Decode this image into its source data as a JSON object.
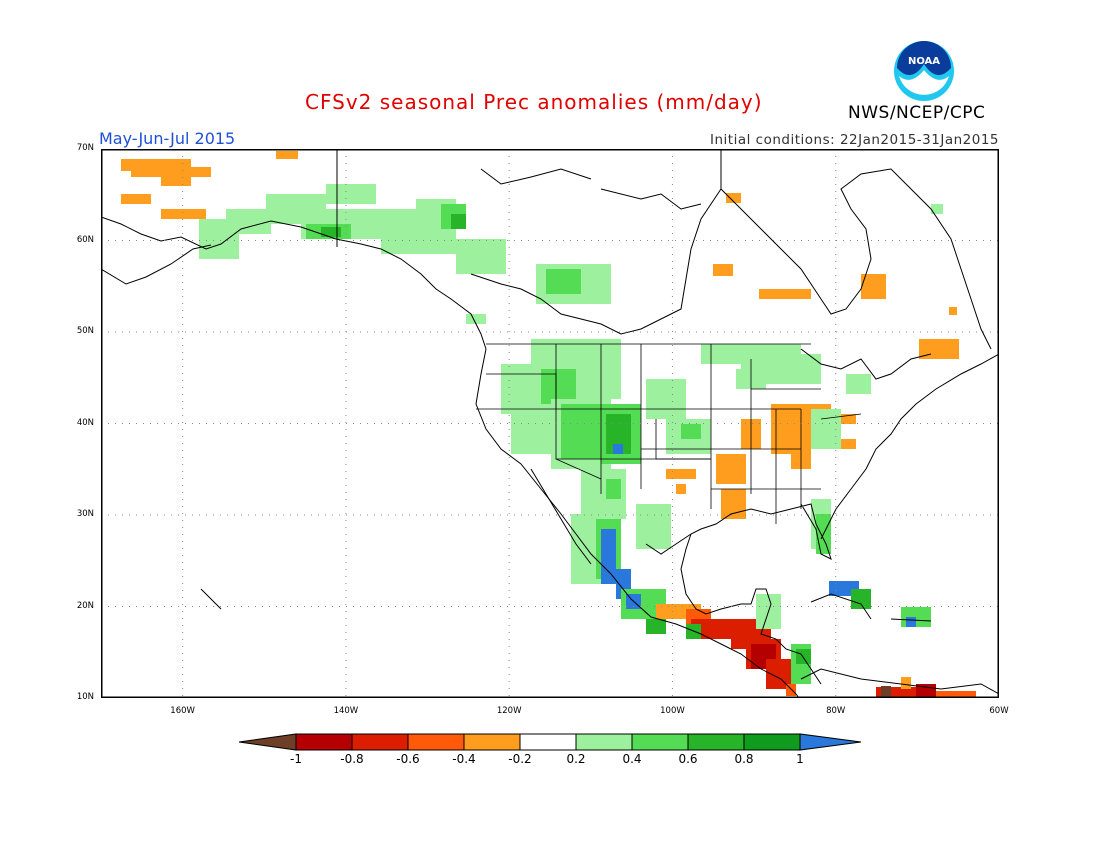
{
  "header": {
    "title": "CFSv2 seasonal Prec anomalies (mm/day)",
    "season": "May-Jun-Jul 2015",
    "initial_conditions": "Initial conditions: 22Jan2015-31Jan2015",
    "agency": "NWS/NCEP/CPC",
    "logo_text": "NOAA"
  },
  "map": {
    "lon_range": [
      -170,
      -60
    ],
    "lat_range": [
      10,
      70
    ],
    "lat_labels": [
      "70N",
      "60N",
      "50N",
      "40N",
      "30N",
      "20N",
      "10N"
    ],
    "lon_labels": [
      "160W",
      "140W",
      "120W",
      "100W",
      "80W",
      "60W"
    ],
    "grid": true
  },
  "colorbar": {
    "labels": [
      "-1",
      "-0.8",
      "-0.6",
      "-0.4",
      "-0.2",
      "0.2",
      "0.4",
      "0.6",
      "0.8",
      "1"
    ],
    "colors": [
      "#6e3f28",
      "#b40000",
      "#dc1e00",
      "#ff5a0a",
      "#ff9d1e",
      "#ffffff",
      "#9df09d",
      "#55dc55",
      "#28b428",
      "#0f9b1e",
      "#2b78dc"
    ]
  },
  "colors": {
    "title": "#e00000",
    "season": "#1e50d8",
    "noaa_blue": "#0a3c9b",
    "noaa_cyan": "#20c8f0"
  }
}
